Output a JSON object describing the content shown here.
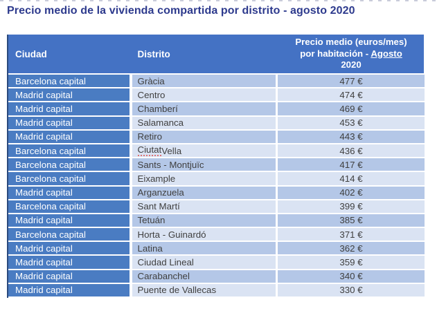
{
  "title": "Precio medio de la vivienda compartida por distrito - agosto 2020",
  "colors": {
    "title_color": "#2d3a8d",
    "header_bg": "#4472c4",
    "city_cell_bg": "#4a7cc2",
    "row_odd": "#b4c7e7",
    "row_even": "#dae3f3",
    "table_edge": "#2b4a7d",
    "cell_text": "#3f3f3f",
    "spellcheck_underline": "#dd7272"
  },
  "chart_data": {
    "type": "table",
    "title": "Precio medio de la vivienda compartida por distrito - agosto 2020",
    "columns": [
      "Ciudad",
      "Distrito",
      "Precio medio (euros/mes) por habitación - Agosto 2020"
    ],
    "header_display": {
      "ciudad": "Ciudad",
      "distrito": "Distrito",
      "precio_lines": [
        {
          "text": "Precio medio (euros/mes)"
        },
        {
          "prefix": "por habitación - ",
          "underlined": "Agosto"
        },
        {
          "text": "2020"
        }
      ]
    },
    "rows": [
      {
        "ciudad": "Barcelona capital",
        "distrito": "Gràcia",
        "precio": "477 €",
        "valor": 477
      },
      {
        "ciudad": "Madrid capital",
        "distrito": "Centro",
        "precio": "474 €",
        "valor": 474
      },
      {
        "ciudad": "Madrid capital",
        "distrito": "Chamberí",
        "precio": "469 €",
        "valor": 469
      },
      {
        "ciudad": "Madrid capital",
        "distrito": "Salamanca",
        "precio": "453 €",
        "valor": 453
      },
      {
        "ciudad": "Madrid capital",
        "distrito": "Retiro",
        "precio": "443 €",
        "valor": 443
      },
      {
        "ciudad": "Barcelona capital",
        "distrito": "Ciutat Vella",
        "precio": "436 €",
        "valor": 436,
        "spellcheck_word": "Ciutat"
      },
      {
        "ciudad": "Barcelona capital",
        "distrito": "Sants - Montjuïc",
        "precio": "417 €",
        "valor": 417
      },
      {
        "ciudad": "Barcelona capital",
        "distrito": "Eixample",
        "precio": "414 €",
        "valor": 414
      },
      {
        "ciudad": "Madrid capital",
        "distrito": "Arganzuela",
        "precio": "402 €",
        "valor": 402
      },
      {
        "ciudad": "Barcelona capital",
        "distrito": "Sant Martí",
        "precio": "399 €",
        "valor": 399
      },
      {
        "ciudad": "Madrid capital",
        "distrito": "Tetuán",
        "precio": "385 €",
        "valor": 385
      },
      {
        "ciudad": "Barcelona capital",
        "distrito": "Horta - Guinardó",
        "precio": "371 €",
        "valor": 371
      },
      {
        "ciudad": "Madrid capital",
        "distrito": "Latina",
        "precio": "362 €",
        "valor": 362
      },
      {
        "ciudad": "Madrid capital",
        "distrito": "Ciudad Lineal",
        "precio": "359 €",
        "valor": 359
      },
      {
        "ciudad": "Madrid capital",
        "distrito": "Carabanchel",
        "precio": "340 €",
        "valor": 340
      },
      {
        "ciudad": "Madrid capital",
        "distrito": "Puente de Vallecas",
        "precio": "330 €",
        "valor": 330
      }
    ]
  }
}
